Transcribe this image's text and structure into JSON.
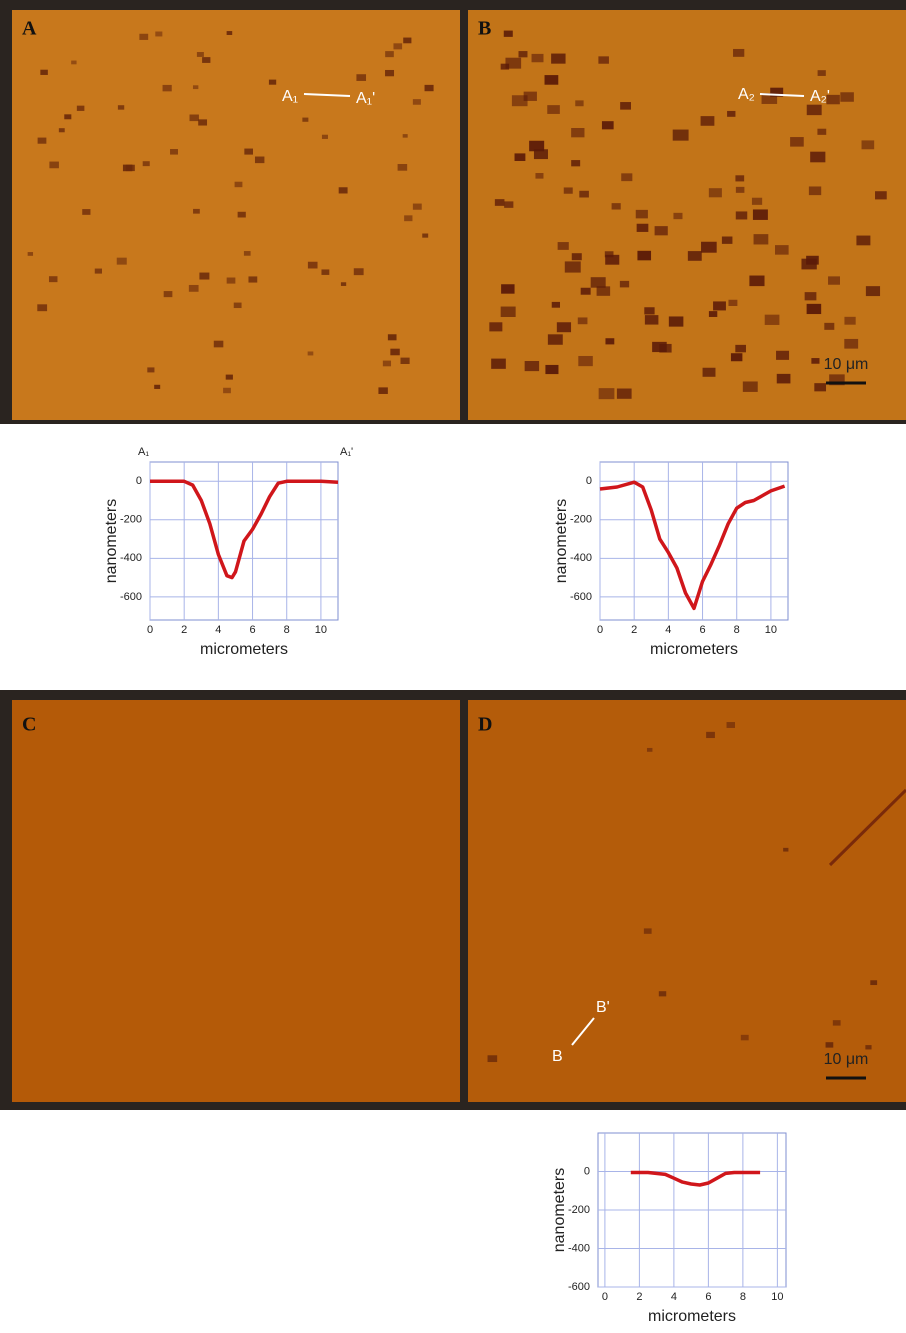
{
  "panels": [
    {
      "label": "A",
      "annotations": [
        "A₁",
        "A₁'"
      ]
    },
    {
      "label": "B",
      "annotations": [
        "A₂",
        "A₂'"
      ],
      "scale_bar": "10 μm"
    },
    {
      "label": "C"
    },
    {
      "label": "D",
      "annotations": [
        "B",
        "B'"
      ],
      "scale_bar": "10 μm"
    }
  ],
  "chart_data": [
    {
      "type": "line",
      "x_label": "micrometers",
      "y_label": "nanometers",
      "start_label": "A₁",
      "end_label": "A₁'",
      "color": "#d0161b",
      "x": [
        0,
        1,
        2,
        2.5,
        3,
        3.5,
        4,
        4.5,
        4.8,
        5,
        5.5,
        6,
        6.5,
        7,
        7.5,
        8,
        9,
        10,
        11
      ],
      "values": [
        0,
        0,
        0,
        -20,
        -100,
        -220,
        -380,
        -490,
        -500,
        -470,
        -310,
        -250,
        -170,
        -80,
        -10,
        0,
        0,
        0,
        -5
      ],
      "xlim": [
        0,
        11
      ],
      "ylim": [
        -720,
        100
      ],
      "xticks": [
        0,
        2,
        4,
        6,
        8,
        10
      ],
      "yticks": [
        0,
        -200,
        -400,
        -600
      ],
      "grid": true
    },
    {
      "type": "line",
      "x_label": "micrometers",
      "y_label": "nanometers",
      "color": "#d0161b",
      "x": [
        0,
        1,
        2,
        2.5,
        3,
        3.5,
        4,
        4.5,
        5,
        5.5,
        6,
        6.5,
        7,
        7.5,
        8,
        8.5,
        9,
        10,
        10.8
      ],
      "values": [
        -40,
        -30,
        -5,
        -30,
        -150,
        -300,
        -370,
        -450,
        -580,
        -660,
        -520,
        -430,
        -330,
        -220,
        -140,
        -110,
        -100,
        -50,
        -25
      ],
      "xlim": [
        0,
        11
      ],
      "ylim": [
        -720,
        100
      ],
      "xticks": [
        0,
        2,
        4,
        6,
        8,
        10
      ],
      "yticks": [
        0,
        -200,
        -400,
        -600
      ],
      "grid": true
    },
    {
      "type": "line",
      "x_label": "micrometers",
      "y_label": "nanometers",
      "color": "#d0161b",
      "x": [
        1.5,
        2.5,
        3.5,
        4,
        4.5,
        5,
        5.5,
        6,
        6.5,
        7,
        7.5,
        9
      ],
      "values": [
        -5,
        -5,
        -15,
        -35,
        -55,
        -65,
        -70,
        -60,
        -35,
        -10,
        -5,
        -5
      ],
      "xlim": [
        -0.4,
        10.5
      ],
      "ylim": [
        -600,
        200
      ],
      "xticks": [
        0,
        2,
        4,
        6,
        8,
        10
      ],
      "yticks": [
        0,
        -200,
        -400,
        -600
      ],
      "grid": true
    }
  ]
}
